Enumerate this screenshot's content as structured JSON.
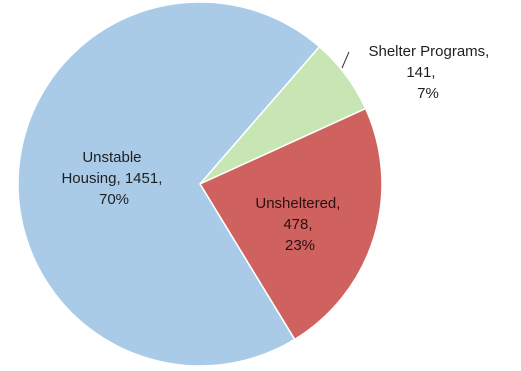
{
  "chart_data": {
    "type": "pie",
    "title": "",
    "slices": [
      {
        "name": "Unstable Housing",
        "value": 1451,
        "percent": 70,
        "color": "#a9cbe8",
        "label_lines": [
          "Unstable",
          "Housing, 1451,",
          "70%"
        ]
      },
      {
        "name": "Shelter Programs",
        "value": 141,
        "percent": 7,
        "color": "#c8e6b4",
        "label_lines": [
          "Shelter Programs,",
          "141,",
          "7%"
        ]
      },
      {
        "name": "Unsheltered",
        "value": 478,
        "percent": 23,
        "color": "#cf625f",
        "label_lines": [
          "Unsheltered,",
          "478,",
          "23%"
        ]
      }
    ]
  }
}
